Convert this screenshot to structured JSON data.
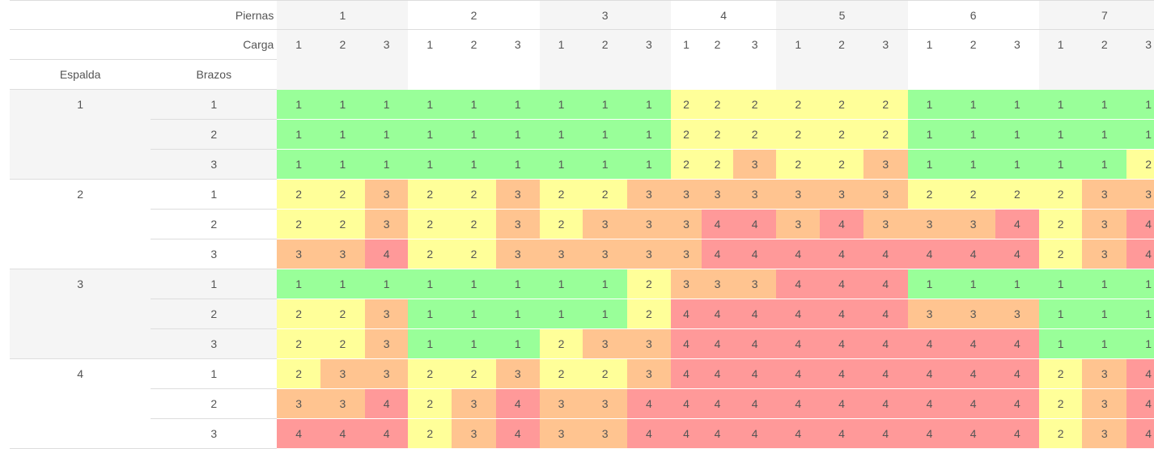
{
  "header": {
    "piernas_label": "Piernas",
    "carga_label": "Carga",
    "espalda_label": "Espalda",
    "brazos_label": "Brazos",
    "piernas": [
      "1",
      "2",
      "3",
      "4",
      "5",
      "6",
      "7"
    ],
    "carga": [
      "1",
      "2",
      "3"
    ]
  },
  "colors": {
    "1": "#99ff99",
    "2": "#ffff99",
    "3": "#ffc490",
    "4": "#ff9999"
  },
  "groups": [
    {
      "espalda": "1",
      "rows": [
        {
          "brazos": "1",
          "values": [
            1,
            1,
            1,
            1,
            1,
            1,
            1,
            1,
            1,
            2,
            2,
            2,
            2,
            2,
            2,
            1,
            1,
            1,
            1,
            1,
            1
          ]
        },
        {
          "brazos": "2",
          "values": [
            1,
            1,
            1,
            1,
            1,
            1,
            1,
            1,
            1,
            2,
            2,
            2,
            2,
            2,
            2,
            1,
            1,
            1,
            1,
            1,
            1
          ]
        },
        {
          "brazos": "3",
          "values": [
            1,
            1,
            1,
            1,
            1,
            1,
            1,
            1,
            1,
            2,
            2,
            3,
            2,
            2,
            3,
            1,
            1,
            1,
            1,
            1,
            2
          ]
        }
      ]
    },
    {
      "espalda": "2",
      "rows": [
        {
          "brazos": "1",
          "values": [
            2,
            2,
            3,
            2,
            2,
            3,
            2,
            2,
            3,
            3,
            3,
            3,
            3,
            3,
            3,
            2,
            2,
            2,
            2,
            3,
            3
          ]
        },
        {
          "brazos": "2",
          "values": [
            2,
            2,
            3,
            2,
            2,
            3,
            2,
            3,
            3,
            3,
            4,
            4,
            3,
            4,
            3,
            3,
            3,
            4,
            2,
            3,
            4
          ]
        },
        {
          "brazos": "3",
          "values": [
            3,
            3,
            4,
            2,
            2,
            3,
            3,
            3,
            3,
            3,
            4,
            4,
            4,
            4,
            4,
            4,
            4,
            4,
            2,
            3,
            4
          ]
        }
      ]
    },
    {
      "espalda": "3",
      "rows": [
        {
          "brazos": "1",
          "values": [
            1,
            1,
            1,
            1,
            1,
            1,
            1,
            1,
            2,
            3,
            3,
            3,
            4,
            4,
            4,
            1,
            1,
            1,
            1,
            1,
            1
          ]
        },
        {
          "brazos": "2",
          "values": [
            2,
            2,
            3,
            1,
            1,
            1,
            1,
            1,
            2,
            4,
            4,
            4,
            4,
            4,
            4,
            3,
            3,
            3,
            1,
            1,
            1
          ]
        },
        {
          "brazos": "3",
          "values": [
            2,
            2,
            3,
            1,
            1,
            1,
            2,
            3,
            3,
            4,
            4,
            4,
            4,
            4,
            4,
            4,
            4,
            4,
            1,
            1,
            1
          ]
        }
      ]
    },
    {
      "espalda": "4",
      "rows": [
        {
          "brazos": "1",
          "values": [
            2,
            3,
            3,
            2,
            2,
            3,
            2,
            2,
            3,
            4,
            4,
            4,
            4,
            4,
            4,
            4,
            4,
            4,
            2,
            3,
            4
          ]
        },
        {
          "brazos": "2",
          "values": [
            3,
            3,
            4,
            2,
            3,
            4,
            3,
            3,
            4,
            4,
            4,
            4,
            4,
            4,
            4,
            4,
            4,
            4,
            2,
            3,
            4
          ]
        },
        {
          "brazos": "3",
          "values": [
            4,
            4,
            4,
            2,
            3,
            4,
            3,
            3,
            4,
            4,
            4,
            4,
            4,
            4,
            4,
            4,
            4,
            4,
            2,
            3,
            4
          ]
        }
      ]
    }
  ]
}
